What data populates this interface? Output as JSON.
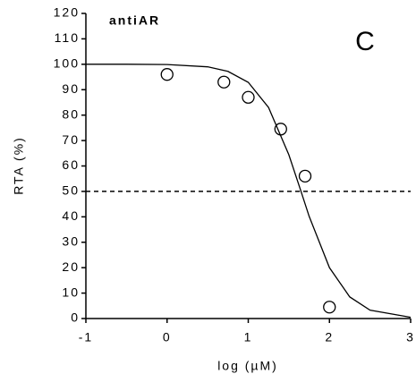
{
  "chart_data": {
    "type": "scatter",
    "xlabel": "log (µM)",
    "ylabel": "RTA (%)",
    "annotations": [
      "antiAR",
      "C"
    ],
    "xlim": [
      -1,
      3
    ],
    "xticks": [
      -1,
      0,
      1,
      2,
      3
    ],
    "ylim": [
      0,
      120
    ],
    "yticks": [
      0,
      10,
      20,
      30,
      40,
      50,
      60,
      70,
      80,
      90,
      100,
      110,
      120
    ],
    "reference_line": 50,
    "series": [
      {
        "kind": "markers",
        "color": "#000000",
        "x": [
          0,
          0.7,
          1,
          1.4,
          1.7,
          2
        ],
        "values": [
          96,
          93,
          87,
          74.5,
          56,
          4.5
        ]
      },
      {
        "kind": "line",
        "color": "#000000",
        "x": [
          -1,
          -0.5,
          0,
          0.5,
          0.75,
          1,
          1.25,
          1.5,
          1.65,
          1.75,
          2,
          2.25,
          2.5,
          3
        ],
        "values": [
          100,
          100,
          99.9,
          99,
          97.2,
          92.9,
          83,
          64.4,
          50,
          40.2,
          20,
          8.5,
          3.3,
          0.5
        ]
      }
    ]
  }
}
